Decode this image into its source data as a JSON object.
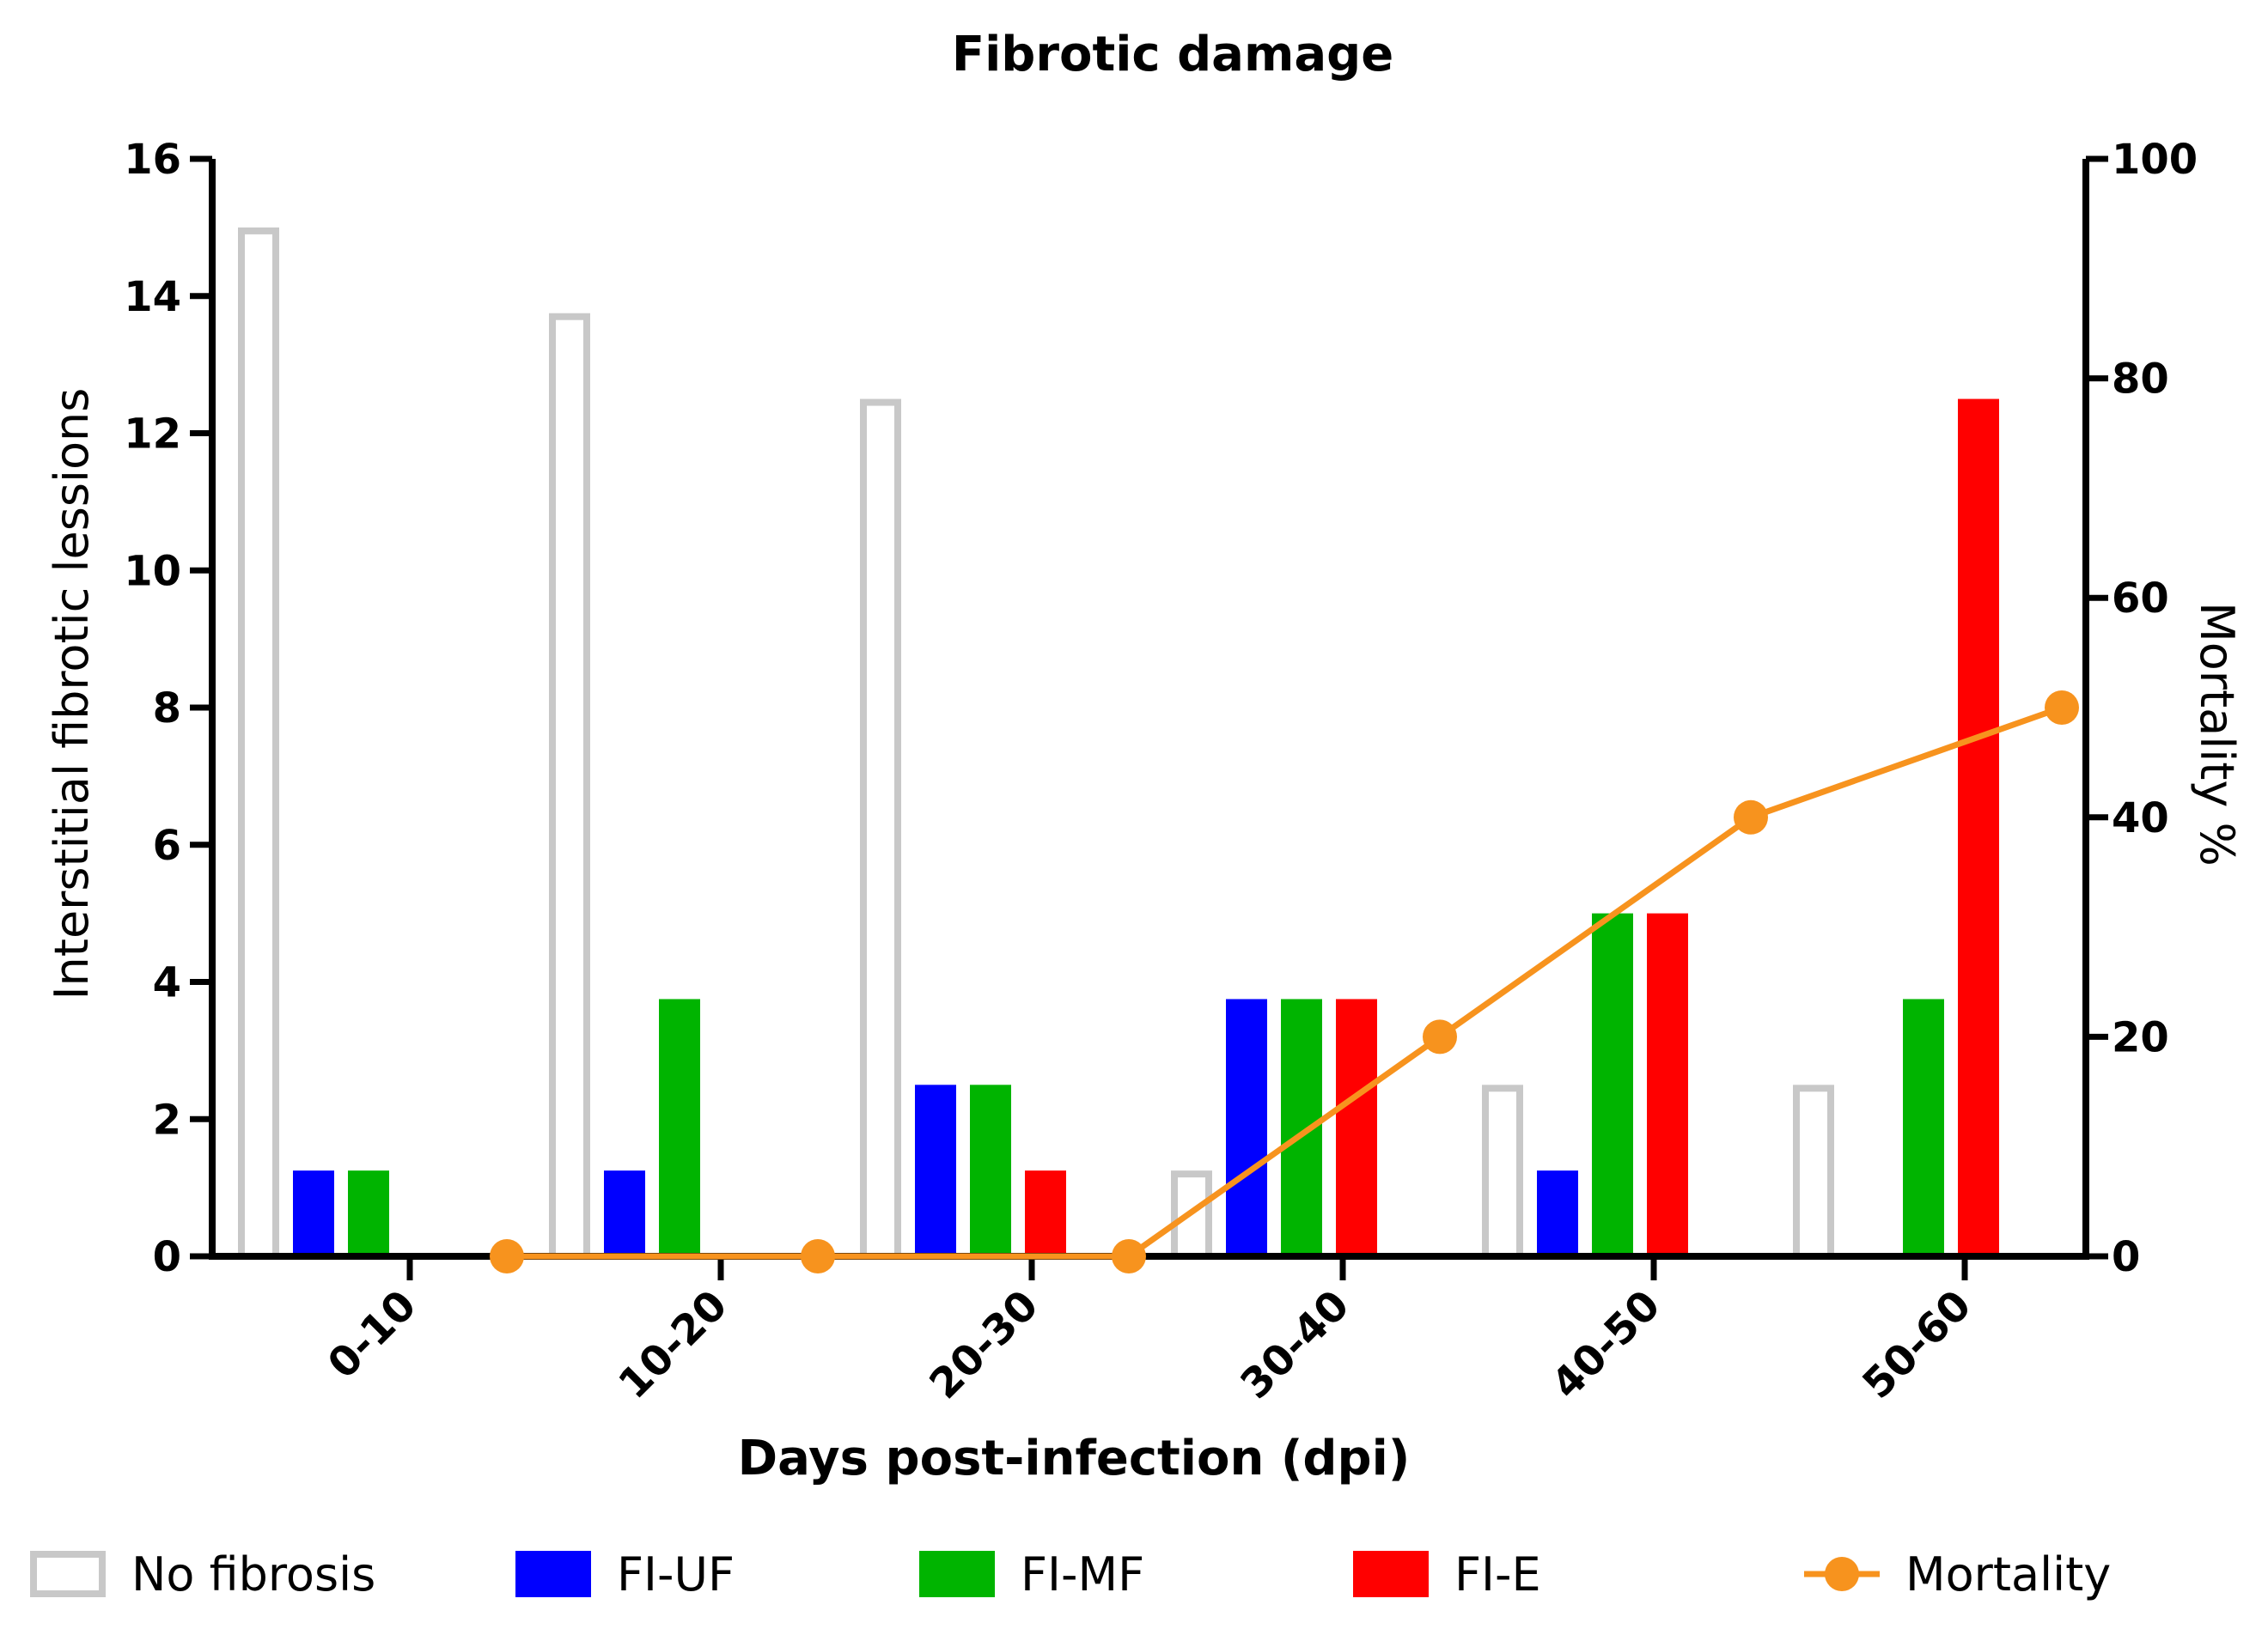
{
  "chart_data": {
    "type": "bar",
    "title": "Fibrotic damage",
    "xlabel": "Days post-infection (dpi)",
    "ylabel": "Interstitial fibrotic lessions",
    "y2label": "Mortality %",
    "ylim": [
      0,
      16
    ],
    "y2lim": [
      0,
      100
    ],
    "yticks": [
      "0",
      "2",
      "4",
      "6",
      "8",
      "10",
      "12",
      "14",
      "16"
    ],
    "y2ticks": [
      "0",
      "20",
      "40",
      "60",
      "80",
      "100"
    ],
    "categories": [
      "0-10",
      "10-20",
      "20-30",
      "30-40",
      "40-50",
      "50-60"
    ],
    "series": [
      {
        "name": "No fibrosis",
        "kind": "bar",
        "style": "outline",
        "color": "#c8c8c8",
        "values": [
          15,
          13.75,
          12.5,
          1.25,
          2.5,
          2.5
        ]
      },
      {
        "name": "FI-UF",
        "kind": "bar",
        "color": "#0000ff",
        "values": [
          1.25,
          1.25,
          2.5,
          3.75,
          1.25,
          0
        ]
      },
      {
        "name": "FI-MF",
        "kind": "bar",
        "color": "#00b400",
        "values": [
          1.25,
          3.75,
          2.5,
          3.75,
          5,
          3.75
        ]
      },
      {
        "name": "FI-E",
        "kind": "bar",
        "color": "#ff0000",
        "values": [
          0,
          0,
          1.25,
          3.75,
          5,
          12.5
        ]
      },
      {
        "name": "Mortality",
        "kind": "line",
        "axis": "right",
        "color": "#f7931e",
        "values": [
          0,
          0,
          0,
          20,
          40,
          50
        ]
      }
    ],
    "legend_position": "bottom"
  }
}
